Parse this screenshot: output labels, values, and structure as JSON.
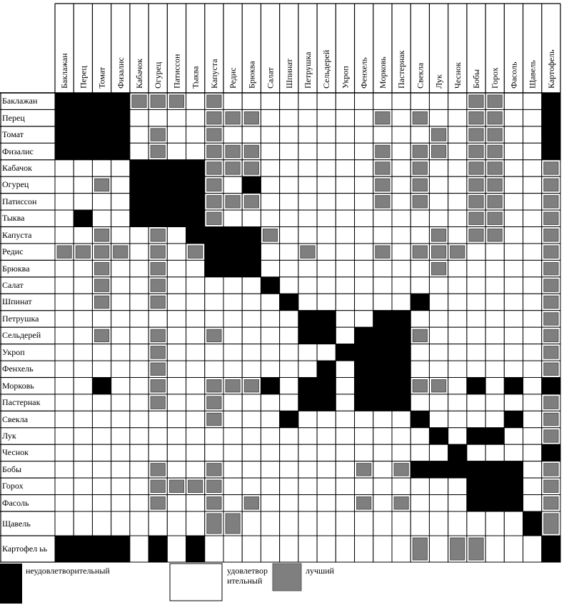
{
  "table": {
    "columns": [
      "Баклажан",
      "Перец",
      "Томат",
      "Физалис",
      "Кабачок",
      "Огурец",
      "Патиссон",
      "Тыква",
      "Капуста",
      "Редис",
      "Брюква",
      "Салат",
      "Шпинат",
      "Петрушка",
      "Сельдерей",
      "Укроп",
      "Фенхель",
      "Морковь",
      "Пастернак",
      "Свекла",
      "Лук",
      "Чеснок",
      "Бобы",
      "Горох",
      "Фасоль",
      "Щавель",
      "Картофель"
    ],
    "rows": [
      "Баклажан",
      "Перец",
      "Томат",
      "Физалис",
      "Кабачок",
      "Огурец",
      "Патиссон",
      "Тыква",
      "Капуста",
      "Редис",
      "Брюква",
      "Салат",
      "Шпинат",
      "Петрушка",
      "Сельдерей",
      "Укроп",
      "Фенхель",
      "Морковь",
      "Пастернак",
      "Свекла",
      "Лук",
      "Чеснок",
      "Бобы",
      "Горох",
      "Фасоль",
      "Щавель",
      "Картофел ьь"
    ],
    "cells": [
      [
        0,
        0,
        0,
        0,
        2,
        2,
        2,
        1,
        2,
        1,
        1,
        1,
        1,
        1,
        1,
        1,
        1,
        1,
        1,
        1,
        1,
        1,
        2,
        2,
        1,
        1,
        0
      ],
      [
        0,
        0,
        0,
        0,
        1,
        1,
        1,
        1,
        2,
        2,
        2,
        1,
        1,
        1,
        1,
        1,
        1,
        2,
        1,
        2,
        1,
        1,
        2,
        2,
        1,
        1,
        0
      ],
      [
        0,
        0,
        0,
        0,
        1,
        2,
        1,
        1,
        2,
        1,
        1,
        1,
        1,
        1,
        1,
        1,
        1,
        1,
        1,
        1,
        2,
        1,
        2,
        2,
        1,
        1,
        0
      ],
      [
        0,
        0,
        0,
        0,
        1,
        2,
        1,
        1,
        2,
        2,
        2,
        1,
        1,
        1,
        1,
        1,
        1,
        2,
        1,
        2,
        2,
        1,
        2,
        2,
        1,
        1,
        0
      ],
      [
        1,
        1,
        1,
        1,
        0,
        0,
        0,
        0,
        2,
        2,
        2,
        1,
        1,
        1,
        1,
        1,
        1,
        2,
        1,
        2,
        1,
        1,
        2,
        2,
        1,
        1,
        2
      ],
      [
        1,
        1,
        2,
        1,
        0,
        0,
        0,
        0,
        2,
        1,
        0,
        1,
        1,
        1,
        1,
        1,
        1,
        2,
        1,
        2,
        1,
        1,
        2,
        2,
        1,
        1,
        2
      ],
      [
        1,
        1,
        1,
        1,
        0,
        0,
        0,
        0,
        2,
        2,
        2,
        1,
        1,
        1,
        1,
        1,
        1,
        2,
        1,
        2,
        1,
        1,
        2,
        2,
        1,
        1,
        2
      ],
      [
        1,
        0,
        1,
        1,
        0,
        0,
        0,
        0,
        2,
        1,
        1,
        1,
        1,
        1,
        1,
        1,
        1,
        1,
        1,
        1,
        1,
        1,
        2,
        2,
        1,
        1,
        2
      ],
      [
        1,
        1,
        2,
        1,
        1,
        2,
        1,
        0,
        0,
        0,
        0,
        2,
        1,
        1,
        1,
        1,
        1,
        1,
        1,
        1,
        2,
        1,
        2,
        2,
        1,
        1,
        2
      ],
      [
        2,
        2,
        2,
        2,
        1,
        2,
        1,
        2,
        0,
        0,
        0,
        1,
        1,
        2,
        1,
        1,
        1,
        2,
        1,
        2,
        2,
        2,
        1,
        1,
        1,
        1,
        2
      ],
      [
        1,
        1,
        2,
        1,
        1,
        2,
        1,
        1,
        0,
        0,
        0,
        1,
        1,
        1,
        1,
        1,
        1,
        1,
        1,
        1,
        2,
        1,
        1,
        1,
        1,
        1,
        2
      ],
      [
        1,
        1,
        2,
        1,
        1,
        2,
        1,
        1,
        1,
        1,
        1,
        0,
        1,
        1,
        1,
        1,
        1,
        1,
        1,
        1,
        1,
        1,
        1,
        1,
        1,
        1,
        2
      ],
      [
        1,
        1,
        2,
        1,
        1,
        2,
        1,
        1,
        1,
        1,
        1,
        1,
        0,
        1,
        1,
        1,
        1,
        1,
        1,
        0,
        1,
        1,
        1,
        1,
        1,
        1,
        2
      ],
      [
        1,
        1,
        1,
        1,
        1,
        1,
        1,
        1,
        1,
        1,
        1,
        1,
        1,
        0,
        0,
        1,
        1,
        0,
        0,
        1,
        1,
        1,
        1,
        1,
        1,
        1,
        2
      ],
      [
        1,
        1,
        2,
        1,
        1,
        2,
        1,
        1,
        2,
        1,
        1,
        1,
        1,
        0,
        0,
        1,
        0,
        0,
        0,
        2,
        1,
        1,
        1,
        1,
        1,
        1,
        2
      ],
      [
        1,
        1,
        1,
        1,
        1,
        2,
        1,
        1,
        1,
        1,
        1,
        1,
        1,
        1,
        1,
        0,
        0,
        0,
        0,
        1,
        1,
        1,
        1,
        1,
        1,
        1,
        2
      ],
      [
        1,
        1,
        1,
        1,
        1,
        2,
        1,
        1,
        1,
        1,
        1,
        1,
        1,
        1,
        0,
        1,
        0,
        0,
        0,
        1,
        1,
        1,
        1,
        1,
        1,
        1,
        2
      ],
      [
        1,
        1,
        0,
        1,
        1,
        2,
        1,
        1,
        2,
        2,
        2,
        0,
        1,
        0,
        0,
        1,
        0,
        0,
        0,
        2,
        2,
        1,
        0,
        1,
        0,
        1,
        0
      ],
      [
        1,
        1,
        1,
        1,
        1,
        2,
        1,
        1,
        2,
        1,
        1,
        1,
        1,
        0,
        0,
        1,
        0,
        0,
        0,
        1,
        1,
        1,
        1,
        1,
        1,
        1,
        2
      ],
      [
        1,
        1,
        1,
        1,
        1,
        1,
        1,
        1,
        2,
        1,
        1,
        1,
        0,
        1,
        1,
        1,
        1,
        1,
        1,
        0,
        1,
        1,
        1,
        1,
        0,
        1,
        2
      ],
      [
        1,
        1,
        1,
        1,
        1,
        1,
        1,
        1,
        1,
        1,
        1,
        1,
        1,
        1,
        1,
        1,
        1,
        1,
        1,
        1,
        0,
        1,
        0,
        0,
        1,
        1,
        2
      ],
      [
        1,
        1,
        1,
        1,
        1,
        1,
        1,
        1,
        1,
        1,
        1,
        1,
        1,
        1,
        1,
        1,
        1,
        1,
        1,
        1,
        1,
        0,
        1,
        1,
        1,
        1,
        0
      ],
      [
        1,
        1,
        1,
        1,
        1,
        2,
        1,
        1,
        2,
        1,
        1,
        1,
        1,
        1,
        1,
        1,
        2,
        1,
        2,
        0,
        0,
        0,
        0,
        0,
        0,
        1,
        2
      ],
      [
        1,
        1,
        1,
        1,
        1,
        2,
        2,
        2,
        2,
        1,
        1,
        1,
        1,
        1,
        1,
        1,
        1,
        1,
        1,
        1,
        1,
        1,
        0,
        0,
        0,
        1,
        2
      ],
      [
        1,
        1,
        1,
        1,
        1,
        2,
        1,
        1,
        2,
        1,
        2,
        1,
        1,
        1,
        1,
        1,
        2,
        1,
        2,
        1,
        1,
        1,
        0,
        0,
        0,
        1,
        2
      ],
      [
        1,
        1,
        1,
        1,
        1,
        1,
        1,
        1,
        2,
        2,
        1,
        1,
        1,
        1,
        1,
        1,
        1,
        1,
        1,
        1,
        1,
        1,
        1,
        1,
        1,
        0,
        2
      ],
      [
        0,
        0,
        0,
        0,
        1,
        0,
        1,
        0,
        1,
        1,
        1,
        1,
        1,
        1,
        1,
        1,
        1,
        1,
        1,
        2,
        1,
        2,
        2,
        1,
        1,
        1,
        0
      ]
    ]
  },
  "legend": [
    {
      "label": "неудовлетворительный",
      "color": "#000000"
    },
    {
      "label": "удовлетворительный",
      "color": "#ffffff"
    },
    {
      "label": "лучший",
      "color": "#7f7f7f"
    }
  ]
}
